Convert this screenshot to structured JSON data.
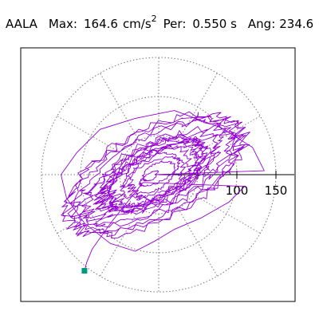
{
  "header": {
    "station": "AALA",
    "max_label": "Max:",
    "max_value": "164.6",
    "max_unit": "cm/s",
    "max_unit_exp": "2",
    "per_label": "Per:",
    "per_value": "0.550 s",
    "ang_label": "Ang:",
    "ang_value": "234.6"
  },
  "chart_data": {
    "type": "scatter",
    "title": "",
    "xlabel": "",
    "ylabel": "",
    "polar_grid": {
      "rings": [
        50,
        100,
        150
      ],
      "spokes_deg": [
        0,
        30,
        60,
        90,
        120,
        150,
        180,
        210,
        240,
        270,
        300,
        330
      ],
      "grid_style": "dotted"
    },
    "axis_tick_labels": [
      "100",
      "150"
    ],
    "axis_ticks": [
      50,
      100,
      150
    ],
    "xlim": [
      -180,
      180
    ],
    "ylim": [
      -165,
      165
    ],
    "trace_color": "#9400d3",
    "end_marker_color": "#009a80",
    "peak": {
      "value": 164.6,
      "angle_deg": 234.6
    },
    "envelope_points": [
      [
        135,
        5
      ],
      [
        120,
        35
      ],
      [
        80,
        60
      ],
      [
        20,
        82
      ],
      [
        -30,
        72
      ],
      [
        -75,
        58
      ],
      [
        -105,
        28
      ],
      [
        -125,
        0
      ],
      [
        -118,
        -30
      ],
      [
        -95,
        -62
      ],
      [
        -62,
        -88
      ],
      [
        -30,
        -98
      ],
      [
        -5,
        -85
      ],
      [
        20,
        -70
      ],
      [
        55,
        -55
      ],
      [
        90,
        -35
      ],
      [
        110,
        -15
      ]
    ],
    "end_point": [
      -95,
      -123
    ]
  }
}
